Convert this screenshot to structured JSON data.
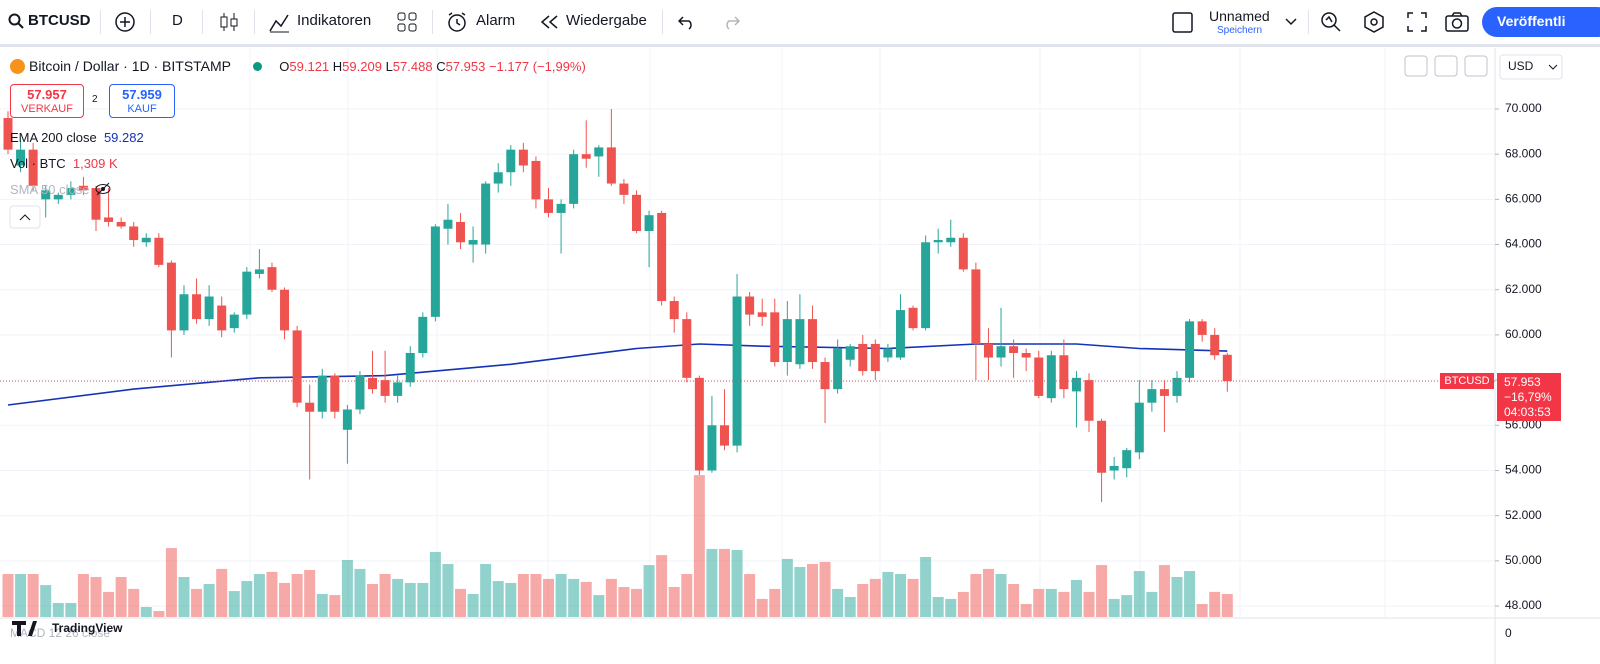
{
  "toolbar": {
    "symbol": "BTCUSD",
    "interval": "D",
    "indicators": "Indikatoren",
    "alert": "Alarm",
    "replay": "Wiedergabe",
    "layout_name": "Unnamed",
    "save": "Speichern",
    "publish": "Veröffentli"
  },
  "legend": {
    "title": "Bitcoin / Dollar · 1D · BITSTAMP",
    "o_label": "O",
    "o": "59.121",
    "h_label": "H",
    "h": "59.209",
    "l_label": "L",
    "l": "57.488",
    "c_label": "C",
    "c": "57.953",
    "change": "−1.177 (−1,99%)",
    "sell_price": "57.957",
    "sell_label": "VERKAUF",
    "spread": "2",
    "buy_price": "57.959",
    "buy_label": "KAUF",
    "ema_name": "EMA 200 close",
    "ema_value": "59.282",
    "vol_name": "Vol · BTC",
    "vol_value": "1,309 K",
    "sma_name": "SMA 50 close"
  },
  "price_axis": {
    "currency": "USD",
    "last_symbol": "BTCUSD",
    "last_price": "57.953",
    "last_change": "−16,79%",
    "countdown": "04:03:53"
  },
  "lower_pane": {
    "name": "MACD 12 26 close",
    "tick": "0"
  },
  "brand": "TradingView",
  "chart_data": {
    "type": "candlestick",
    "up_color": "#26a69a",
    "down_color": "#ef5350",
    "ema_color": "#1432b8",
    "ylim": [
      47.47,
      72.7
    ],
    "yticks": [
      {
        "value": 48,
        "label": "48.000"
      },
      {
        "value": 50,
        "label": "50.000"
      },
      {
        "value": 52,
        "label": "52.000"
      },
      {
        "value": 54,
        "label": "54.000"
      },
      {
        "value": 56,
        "label": "56.000"
      },
      {
        "value": 58,
        "label": "58.000"
      },
      {
        "value": 60,
        "label": "60.000"
      },
      {
        "value": 62,
        "label": "62.000"
      },
      {
        "value": 64,
        "label": "64.000"
      },
      {
        "value": 66,
        "label": "66.000"
      },
      {
        "value": 68,
        "label": "68.000"
      },
      {
        "value": 70,
        "label": "70.000"
      }
    ],
    "grid": true,
    "vlim": [
      0,
      11.4
    ],
    "ohlc": [
      [
        69.6,
        69.9,
        68.0,
        68.2
      ],
      [
        67.5,
        68.6,
        67.2,
        68.2
      ],
      [
        68.2,
        68.5,
        66.4,
        66.6
      ],
      [
        66.0,
        66.6,
        65.2,
        66.4
      ],
      [
        66.0,
        66.3,
        65.8,
        66.2
      ],
      [
        66.2,
        66.8,
        66.0,
        66.5
      ],
      [
        66.6,
        67.0,
        66.2,
        66.4
      ],
      [
        66.5,
        66.6,
        64.6,
        65.1
      ],
      [
        65.2,
        66.5,
        64.8,
        65.0
      ],
      [
        65.0,
        65.2,
        64.7,
        64.8
      ],
      [
        64.8,
        65.0,
        63.9,
        64.2
      ],
      [
        64.1,
        64.5,
        63.9,
        64.3
      ],
      [
        64.3,
        64.5,
        63.0,
        63.1
      ],
      [
        63.2,
        63.3,
        59.0,
        60.2
      ],
      [
        60.2,
        62.2,
        60.0,
        61.8
      ],
      [
        61.8,
        62.5,
        60.5,
        60.7
      ],
      [
        60.7,
        62.2,
        60.4,
        61.7
      ],
      [
        61.3,
        61.7,
        59.9,
        60.2
      ],
      [
        60.3,
        61.0,
        60.1,
        60.9
      ],
      [
        60.9,
        63.0,
        60.7,
        62.8
      ],
      [
        62.7,
        63.8,
        62.5,
        62.9
      ],
      [
        63.0,
        63.2,
        61.9,
        62.0
      ],
      [
        62.0,
        62.1,
        59.8,
        60.2
      ],
      [
        60.2,
        60.4,
        56.8,
        57.0
      ],
      [
        57.0,
        57.8,
        53.6,
        56.6
      ],
      [
        56.6,
        58.5,
        56.3,
        58.2
      ],
      [
        58.2,
        58.3,
        56.3,
        56.6
      ],
      [
        55.8,
        56.9,
        54.3,
        56.7
      ],
      [
        56.7,
        58.4,
        56.5,
        58.2
      ],
      [
        58.1,
        59.3,
        57.4,
        57.6
      ],
      [
        58.0,
        59.3,
        57.0,
        57.3
      ],
      [
        57.3,
        58.2,
        57.0,
        57.9
      ],
      [
        57.9,
        59.5,
        57.7,
        59.2
      ],
      [
        59.2,
        61.0,
        59.0,
        60.8
      ],
      [
        60.8,
        64.9,
        60.6,
        64.8
      ],
      [
        64.7,
        65.8,
        64.0,
        65.1
      ],
      [
        65.0,
        65.4,
        63.8,
        64.1
      ],
      [
        64.0,
        64.8,
        63.2,
        64.2
      ],
      [
        64.0,
        66.8,
        63.6,
        66.7
      ],
      [
        66.7,
        67.6,
        66.3,
        67.2
      ],
      [
        67.2,
        68.4,
        66.6,
        68.2
      ],
      [
        68.2,
        68.5,
        67.2,
        67.5
      ],
      [
        67.7,
        67.9,
        65.6,
        66.0
      ],
      [
        66.0,
        66.5,
        65.2,
        65.4
      ],
      [
        65.4,
        66.0,
        63.6,
        65.8
      ],
      [
        65.8,
        68.2,
        65.6,
        68.0
      ],
      [
        68.0,
        69.5,
        67.4,
        67.8
      ],
      [
        67.9,
        68.4,
        67.0,
        68.3
      ],
      [
        68.3,
        70.0,
        66.6,
        66.7
      ],
      [
        66.7,
        66.9,
        65.8,
        66.2
      ],
      [
        66.2,
        66.4,
        64.5,
        64.6
      ],
      [
        64.6,
        65.5,
        63.0,
        65.3
      ],
      [
        65.4,
        65.5,
        61.3,
        61.5
      ],
      [
        61.5,
        61.7,
        60.1,
        60.7
      ],
      [
        60.7,
        61.0,
        57.9,
        58.1
      ],
      [
        58.1,
        58.2,
        53.8,
        54.0
      ],
      [
        54.0,
        57.3,
        53.9,
        56.0
      ],
      [
        56.0,
        57.6,
        54.9,
        55.1
      ],
      [
        55.1,
        62.7,
        54.8,
        61.7
      ],
      [
        61.7,
        61.9,
        60.4,
        60.9
      ],
      [
        61.0,
        61.6,
        60.4,
        60.8
      ],
      [
        61.0,
        61.6,
        58.6,
        58.8
      ],
      [
        58.8,
        61.5,
        58.2,
        60.7
      ],
      [
        58.7,
        61.8,
        58.5,
        60.7
      ],
      [
        60.7,
        61.3,
        58.5,
        58.8
      ],
      [
        58.8,
        59.0,
        56.1,
        57.6
      ],
      [
        57.6,
        59.8,
        57.4,
        59.4
      ],
      [
        58.9,
        59.6,
        58.6,
        59.5
      ],
      [
        59.6,
        60.0,
        58.2,
        58.4
      ],
      [
        59.6,
        59.8,
        58.0,
        58.4
      ],
      [
        59.0,
        59.6,
        58.8,
        59.4
      ],
      [
        59.0,
        61.8,
        58.9,
        61.1
      ],
      [
        61.2,
        61.3,
        60.2,
        60.3
      ],
      [
        60.3,
        64.4,
        60.2,
        64.1
      ],
      [
        64.1,
        64.7,
        63.6,
        64.2
      ],
      [
        64.1,
        65.1,
        63.9,
        64.3
      ],
      [
        64.3,
        64.5,
        62.8,
        62.9
      ],
      [
        62.9,
        63.2,
        58.0,
        59.6
      ],
      [
        59.6,
        60.3,
        58.0,
        59.0
      ],
      [
        59.0,
        61.2,
        58.6,
        59.5
      ],
      [
        59.5,
        59.8,
        58.1,
        59.2
      ],
      [
        59.2,
        59.4,
        58.4,
        59.0
      ],
      [
        59.0,
        59.3,
        57.2,
        57.3
      ],
      [
        57.2,
        59.3,
        57.0,
        59.1
      ],
      [
        59.1,
        59.8,
        57.2,
        57.6
      ],
      [
        57.5,
        58.4,
        55.9,
        58.1
      ],
      [
        58.0,
        58.3,
        55.7,
        56.2
      ],
      [
        56.2,
        56.3,
        52.6,
        53.9
      ],
      [
        54.0,
        54.6,
        53.6,
        54.2
      ],
      [
        54.1,
        55.0,
        53.7,
        54.9
      ],
      [
        54.8,
        58.0,
        54.5,
        57.0
      ],
      [
        57.0,
        58.0,
        56.6,
        57.6
      ],
      [
        57.6,
        58.0,
        55.7,
        57.3
      ],
      [
        57.3,
        58.4,
        57.0,
        58.1
      ],
      [
        58.1,
        60.7,
        57.9,
        60.6
      ],
      [
        60.6,
        60.7,
        59.7,
        60.0
      ],
      [
        60.0,
        60.3,
        58.9,
        59.1
      ],
      [
        59.121,
        59.209,
        57.488,
        57.953
      ]
    ],
    "volume": [
      2.45,
      2.45,
      2.45,
      1.82,
      0.8,
      0.8,
      2.45,
      2.28,
      1.43,
      2.28,
      1.6,
      0.57,
      0.34,
      3.93,
      2.28,
      1.6,
      1.88,
      2.74,
      1.48,
      2.05,
      2.45,
      2.57,
      1.94,
      2.45,
      2.68,
      1.31,
      1.25,
      3.25,
      2.74,
      1.88,
      2.45,
      2.17,
      1.94,
      1.94,
      3.71,
      3.02,
      1.6,
      1.31,
      3.02,
      2.05,
      1.94,
      2.45,
      2.45,
      2.17,
      2.45,
      2.17,
      2.0,
      1.25,
      2.17,
      1.71,
      1.6,
      2.96,
      3.53,
      1.71,
      2.45,
      8.09,
      3.88,
      3.88,
      3.82,
      2.45,
      1.03,
      1.6,
      3.31,
      2.85,
      3.02,
      3.14,
      1.6,
      1.14,
      1.88,
      2.17,
      2.57,
      2.45,
      2.17,
      3.42,
      1.14,
      1.03,
      1.43,
      2.45,
      2.74,
      2.45,
      1.88,
      0.74,
      1.6,
      1.6,
      1.43,
      2.11,
      1.43,
      2.96,
      1.03,
      1.25,
      2.62,
      1.43,
      2.96,
      2.28,
      2.62,
      0.74,
      1.43,
      1.309
    ],
    "ema": {
      "name": "EMA 200 close",
      "x": [
        0,
        10,
        20,
        30,
        40,
        50,
        55,
        60,
        70,
        77,
        85,
        90,
        97
      ],
      "values": [
        56.9,
        57.6,
        58.1,
        58.2,
        58.7,
        59.4,
        59.6,
        59.5,
        59.4,
        59.6,
        59.6,
        59.4,
        59.282
      ]
    }
  }
}
